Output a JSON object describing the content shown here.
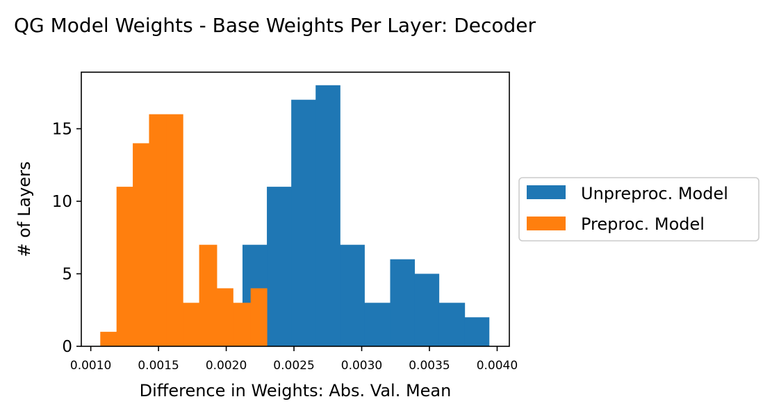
{
  "chart_data": {
    "type": "histogram",
    "title": "QG Model Weights - Base Weights Per Layer: Decoder",
    "xlabel": "Difference in Weights: Abs. Val. Mean",
    "ylabel": "# of Layers",
    "xlim": [
      0.00093,
      0.00409
    ],
    "ylim": [
      0,
      18.9
    ],
    "xticks": [
      0.001,
      0.0015,
      0.002,
      0.0025,
      0.003,
      0.0035,
      0.004
    ],
    "xtick_labels": [
      "0.0010",
      "0.0015",
      "0.0020",
      "0.0025",
      "0.0030",
      "0.0035",
      "0.0040"
    ],
    "yticks": [
      0,
      5,
      10,
      15
    ],
    "ytick_labels": [
      "0",
      "5",
      "10",
      "15"
    ],
    "legend": {
      "placement": "right, outside axes",
      "entries": [
        "Unpreproc. Model",
        "Preproc. Model"
      ]
    },
    "grid": false,
    "series": [
      {
        "name": "Unpreproc. Model",
        "color": "#1f77b4",
        "bin_edges": [
          0.00212,
          0.0023,
          0.00248,
          0.00266,
          0.00284,
          0.00302,
          0.00321,
          0.00339,
          0.00357,
          0.00376,
          0.00394
        ],
        "counts": [
          7,
          11,
          17,
          18,
          7,
          3,
          6,
          5,
          3,
          2
        ]
      },
      {
        "name": "Preproc. Model",
        "color": "#ff7f0e",
        "bin_edges": [
          0.00107,
          0.00119,
          0.00131,
          0.00143,
          0.00156,
          0.00168,
          0.0018,
          0.00193,
          0.00205,
          0.00218,
          0.0023
        ],
        "counts": [
          1,
          11,
          14,
          16,
          16,
          3,
          7,
          4,
          3,
          4
        ]
      }
    ]
  }
}
